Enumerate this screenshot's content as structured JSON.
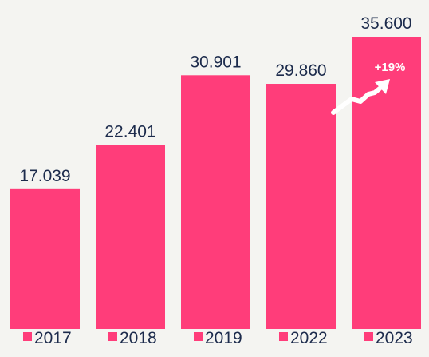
{
  "chart_data": {
    "type": "bar",
    "categories": [
      "2017",
      "2018",
      "2019",
      "2022",
      "2023"
    ],
    "values": [
      17039,
      22401,
      30901,
      29860,
      35600
    ],
    "value_labels": [
      "17.039",
      "22.401",
      "30.901",
      "29.860",
      "35.600"
    ],
    "ylim": [
      0,
      35600
    ],
    "grid": false,
    "legend_position": "bottom",
    "annotation": "+19%"
  },
  "colors": {
    "bar": "#ff3d7a",
    "text": "#1c2b4c",
    "background": "#f4f4f1",
    "annotation": "#ffffff"
  },
  "icons": {
    "growth": "trend-up-arrow-icon"
  }
}
